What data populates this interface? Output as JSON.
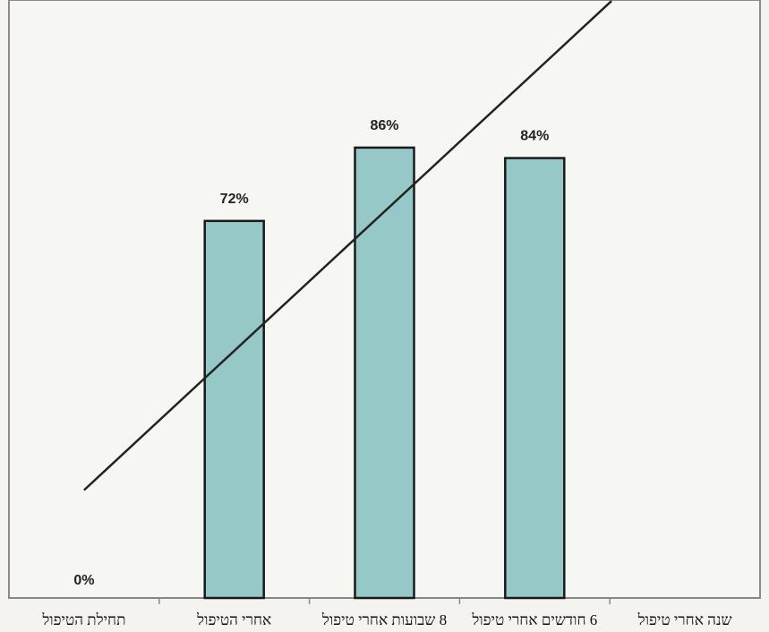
{
  "chart_data": {
    "type": "bar",
    "categories": [
      "תחילת הטיפול",
      "אחרי הטיפול",
      "8 שבועות אחרי טיפול",
      "6 חודשים אחרי טיפול",
      "שנה אחרי טיפול"
    ],
    "values": [
      0,
      72,
      86,
      84,
      null
    ],
    "data_labels": [
      "0%",
      "72%",
      "86%",
      "84%",
      ""
    ],
    "ylim": [
      0,
      100
    ],
    "grid": false,
    "legend": "none",
    "trendline": true,
    "colors": {
      "bar_fill": "#96c8c8",
      "bar_stroke": "#1a1a1a",
      "plot_background": "#f6f6f3",
      "axis": "#888888",
      "trendline": "#222222"
    }
  }
}
